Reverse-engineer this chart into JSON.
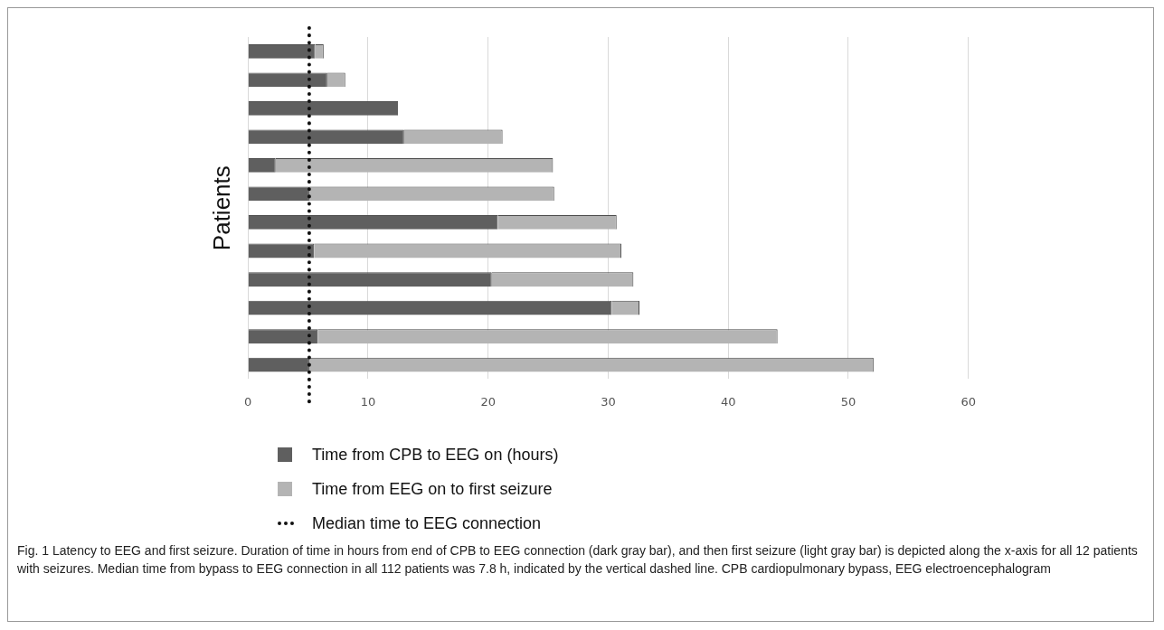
{
  "chart_data": {
    "type": "bar",
    "orientation": "horizontal",
    "stacked": true,
    "ylabel": "Patients",
    "categories": [
      null,
      null,
      null,
      null,
      null,
      null,
      null,
      null,
      null,
      null,
      null,
      null
    ],
    "series": [
      {
        "name": "Time from CPB to EEG on (hours)",
        "color": "#5f5f5f",
        "values": [
          5.6,
          6.6,
          12.5,
          13.0,
          2.3,
          5.1,
          20.8,
          5.5,
          20.3,
          30.3,
          5.8,
          5.1
        ]
      },
      {
        "name": "Time from EEG on to first seizure",
        "color": "#b4b4b4",
        "values": [
          0.7,
          1.5,
          0,
          8.2,
          23.1,
          20.4,
          9.9,
          25.6,
          11.8,
          2.3,
          38.3,
          47.0
        ]
      }
    ],
    "xlim": [
      0,
      60
    ],
    "xticks": [
      0,
      10,
      20,
      30,
      40,
      50,
      60
    ],
    "grid": "x",
    "tick_labels": "x",
    "legend": "bottom",
    "ref_lines": [
      {
        "axis": "x",
        "value": 5.1,
        "label": "Median time to EEG connection",
        "color": "#111111",
        "line_style": "dotted"
      }
    ],
    "annotations": [
      "Fig. 1  Latency to EEG and first seizure. Duration of time in hours from end of CPB to EEG connection (dark gray bar), and then first seizure (light gray bar) is depicted along the x-axis for all 12 patients with seizures. Median time from bypass to EEG connection in all 112 patients was 7.8 h, indicated by the vertical dashed line. CPB cardiopulmonary bypass, EEG electroencephalogram"
    ]
  }
}
